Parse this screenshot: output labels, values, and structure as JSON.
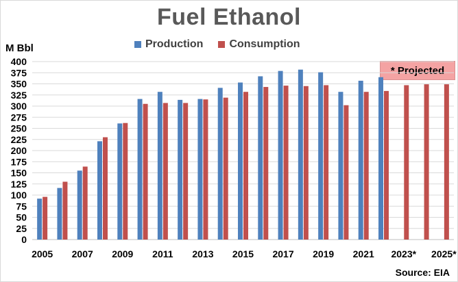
{
  "chart_data": {
    "type": "bar",
    "title": "Fuel Ethanol",
    "ylabel": "M Bbl",
    "ylim": [
      0,
      400
    ],
    "yticks": [
      0,
      25,
      50,
      75,
      100,
      125,
      150,
      175,
      200,
      225,
      250,
      275,
      300,
      325,
      350,
      375,
      400
    ],
    "categories": [
      "2005",
      "2006",
      "2007",
      "2008",
      "2009",
      "2010",
      "2011",
      "2012",
      "2013",
      "2014",
      "2015",
      "2016",
      "2017",
      "2018",
      "2019",
      "2020",
      "2021",
      "2022",
      "2023*",
      "2024*",
      "2025*"
    ],
    "tick_labels": [
      "2005",
      "",
      "2007",
      "",
      "2009",
      "",
      "2011",
      "",
      "2013",
      "",
      "2015",
      "",
      "2017",
      "",
      "2019",
      "",
      "2021",
      "",
      "2023*",
      "",
      "2025*"
    ],
    "series": [
      {
        "name": "Production",
        "color": "#4f81bd",
        "values": [
          92,
          116,
          155,
          221,
          261,
          316,
          332,
          314,
          316,
          341,
          353,
          367,
          379,
          382,
          376,
          332,
          357,
          365,
          null,
          null,
          null
        ]
      },
      {
        "name": "Consumption",
        "color": "#c0504d",
        "values": [
          96,
          130,
          164,
          230,
          262,
          305,
          307,
          307,
          315,
          319,
          332,
          343,
          346,
          345,
          347,
          302,
          332,
          334,
          347,
          349,
          349
        ]
      }
    ],
    "grid": true,
    "legend": "top",
    "annotation": "* Projected",
    "source": "Source: EIA"
  },
  "colors": {
    "grid": "#d9d9d9",
    "axis": "#bfbfbf"
  }
}
